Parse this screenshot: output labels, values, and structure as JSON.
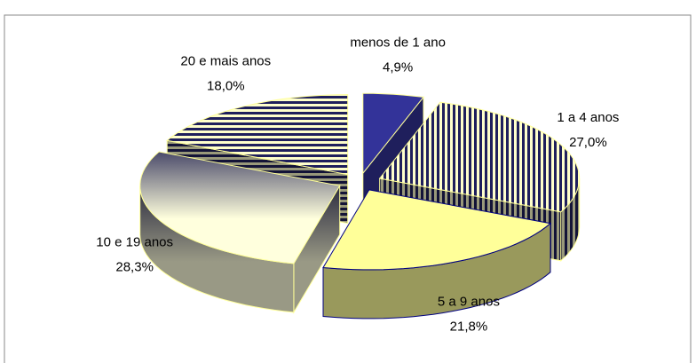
{
  "chart_data": {
    "type": "pie3d",
    "categories": [
      "menos de 1 ano",
      "1 a 4 anos",
      "5 a 9 anos",
      "10 e 19 anos",
      "20 e mais anos"
    ],
    "values": [
      4.9,
      27.0,
      21.8,
      28.3,
      18.0
    ],
    "value_labels": [
      "4,9%",
      "27,0%",
      "21,8%",
      "28,3%",
      "18,0%"
    ],
    "colors": [
      "#333399",
      "#1f1f5c",
      "#ffff99",
      "#4a4a6a",
      "#1f1f5c"
    ],
    "fills": [
      "solid",
      "vertical-stripes",
      "solid",
      "gradient",
      "horizontal-stripes"
    ]
  }
}
